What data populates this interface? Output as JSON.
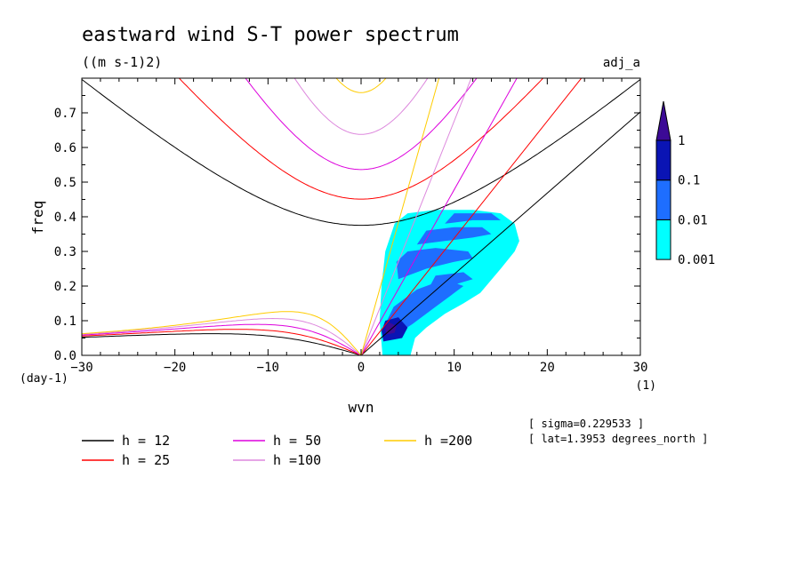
{
  "chart_data": {
    "type": "contour",
    "title": "eastward wind S-T power spectrum",
    "units": "((m s-1)2)",
    "tag": "adj_a",
    "xlabel": "wvn",
    "ylabel": "freq",
    "x_unit": "(1)",
    "y_unit": "(day-1)",
    "xlim": [
      -30,
      30
    ],
    "ylim": [
      0,
      0.8
    ],
    "xticks": [
      -30,
      -20,
      -10,
      0,
      10,
      20,
      30
    ],
    "yticks": [
      0.0,
      0.1,
      0.2,
      0.3,
      0.4,
      0.5,
      0.6,
      0.7
    ],
    "ytick_labels": [
      "0.0",
      "0.1",
      "0.2",
      "0.3",
      "0.4",
      "0.5",
      "0.6",
      "0.7"
    ],
    "colorbar": {
      "levels": [
        "0.001",
        "0.01",
        "0.1",
        "1"
      ],
      "colors": [
        "#00ffff",
        "#1e6eff",
        "#0a14b4",
        "#3c0a96"
      ]
    },
    "series": [
      {
        "name": "h = 12",
        "h": 12,
        "color": "#000000"
      },
      {
        "name": "h = 25",
        "h": 25,
        "color": "#ff0000"
      },
      {
        "name": "h = 50",
        "h": 50,
        "color": "#dd00dd"
      },
      {
        "name": "h =100",
        "h": 100,
        "color": "#dd88dd"
      },
      {
        "name": "h =200",
        "h": 200,
        "color": "#ffcc00"
      }
    ],
    "annotations": {
      "sigma": "[ sigma=0.229533 ]",
      "lat": "[ lat=1.3953 degrees_north ]"
    }
  }
}
